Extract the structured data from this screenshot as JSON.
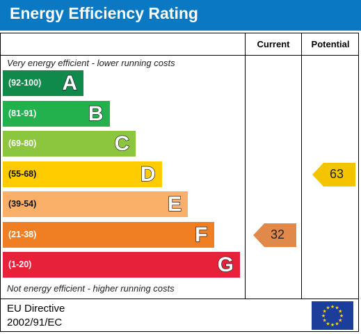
{
  "title": "Energy Efficiency Rating",
  "columns": {
    "current": "Current",
    "potential": "Potential"
  },
  "notes": {
    "top": "Very energy efficient - lower running costs",
    "bottom": "Not energy efficient - higher running costs"
  },
  "footer": {
    "line1": "EU Directive",
    "line2": "2002/91/EC"
  },
  "colors": {
    "title_bar": "#0a78c2",
    "band_text_dark": "#ffffff",
    "band_text_light": "#111111"
  },
  "chart_data": {
    "type": "bar",
    "bands": [
      {
        "range": "(92-100)",
        "letter": "A",
        "color": "#0f8a4a",
        "level": 1
      },
      {
        "range": "(81-91)",
        "letter": "B",
        "color": "#23b14d",
        "level": 2
      },
      {
        "range": "(69-80)",
        "letter": "C",
        "color": "#8cc63f",
        "level": 3
      },
      {
        "range": "(55-68)",
        "letter": "D",
        "color": "#ffcc00",
        "level": 4
      },
      {
        "range": "(39-54)",
        "letter": "E",
        "color": "#fbb06a",
        "level": 5
      },
      {
        "range": "(21-38)",
        "letter": "F",
        "color": "#f07f24",
        "level": 6
      },
      {
        "range": "(1-20)",
        "letter": "G",
        "color": "#e8213a",
        "level": 7
      }
    ],
    "current": {
      "value": 32,
      "band": "F",
      "color": "#e0894a"
    },
    "potential": {
      "value": 63,
      "band": "D",
      "color": "#f5c400"
    }
  }
}
